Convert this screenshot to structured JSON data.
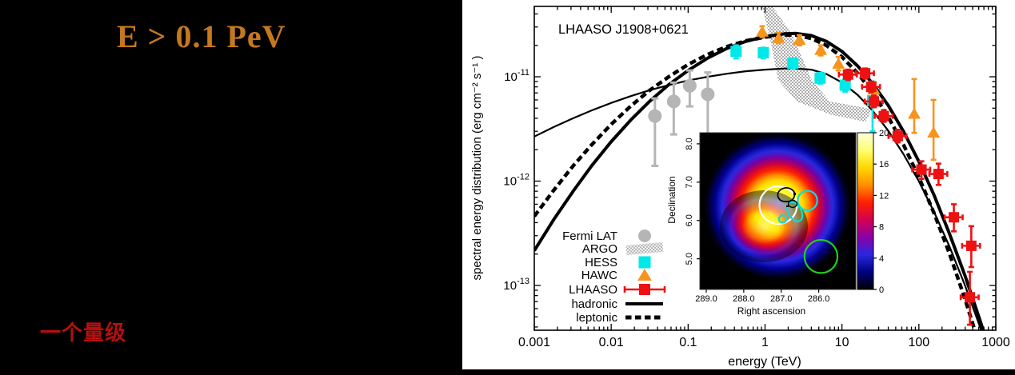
{
  "left_panel": {
    "title": "E > 0.1 PeV",
    "title_color": "#c5791f",
    "note": "一个量级",
    "note_color": "#b60f0f"
  },
  "chart_data": {
    "type": "line",
    "title": "LHAASO J1908+0621",
    "xlabel": "energy (TeV)",
    "ylabel": "spectral energy distribution (erg cm⁻² s⁻¹ )",
    "xscale": "log",
    "yscale": "log",
    "xlim": [
      0.001,
      1000
    ],
    "ylim": [
      3.7e-14,
      4.7e-11
    ],
    "x_tick_labels": [
      "0.001",
      "0.01",
      "0.1",
      "1",
      "10",
      "100",
      "1000"
    ],
    "x_tick_values": [
      0.001,
      0.01,
      0.1,
      1,
      10,
      100,
      1000
    ],
    "y_tick_labels": [
      {
        "base": "10",
        "exp": "-11",
        "value": 1e-11
      },
      {
        "base": "10",
        "exp": "-12",
        "value": 1e-12
      },
      {
        "base": "10",
        "exp": "-13",
        "value": 1e-13
      }
    ],
    "legend": [
      {
        "label": "Fermi LAT",
        "marker": "circle",
        "color": "#b5b5b5"
      },
      {
        "label": "ARGO",
        "marker": "hatch",
        "color": "#aaaaaa"
      },
      {
        "label": "HESS",
        "marker": "square",
        "color": "#00e8e8"
      },
      {
        "label": "HAWC",
        "marker": "triangle",
        "color": "#f7941e"
      },
      {
        "label": "LHAASO",
        "marker": "errsquare",
        "color": "#ee1111"
      },
      {
        "label": "hadronic",
        "marker": "line",
        "color": "#000000"
      },
      {
        "label": "leptonic",
        "marker": "dashes",
        "color": "#000000"
      }
    ],
    "series": [
      {
        "name": "Fermi LAT",
        "marker": "circle",
        "color": "#b5b5b5",
        "points": [
          [
            0.037,
            4.2e-12,
            1.4e-12,
            6.2e-12
          ],
          [
            0.065,
            5.8e-12,
            2.8e-12,
            8.8e-12
          ],
          [
            0.105,
            8.2e-12,
            5.2e-12,
            1.15e-11
          ],
          [
            0.18,
            6.8e-12,
            2e-12,
            1.1e-11
          ]
        ]
      },
      {
        "name": "HESS",
        "marker": "square",
        "color": "#00e8e8",
        "points": [
          [
            0.42,
            1.75e-11,
            1.5e-11,
            2e-11
          ],
          [
            0.95,
            1.7e-11,
            1.5e-11,
            1.9e-11
          ],
          [
            2.3,
            1.35e-11,
            1.2e-11,
            1.5e-11
          ],
          [
            5.2,
            9.7e-12,
            8.6e-12,
            1.09e-11
          ],
          [
            11,
            8.3e-12,
            7.2e-12,
            9.5e-12
          ],
          [
            25,
            5.9e-12,
            3e-12,
            9e-12
          ]
        ]
      },
      {
        "name": "HAWC",
        "marker": "triangle",
        "color": "#f7941e",
        "points": [
          [
            0.92,
            2.7e-11,
            2.4e-11,
            3.05e-11
          ],
          [
            1.5,
            2.35e-11,
            2.1e-11,
            2.65e-11
          ],
          [
            2.8,
            2.25e-11,
            2e-11,
            2.5e-11
          ],
          [
            5.3,
            1.8e-11,
            1.6e-11,
            2e-11
          ],
          [
            9.0,
            1.33e-11,
            1.15e-11,
            1.55e-11
          ],
          [
            26,
            7.5e-12,
            6.3e-12,
            8.9e-12
          ],
          [
            87,
            4.4e-12,
            2.9e-12,
            9.5e-12
          ],
          [
            155,
            2.9e-12,
            1.6e-12,
            6e-12
          ]
        ]
      },
      {
        "name": "LHAASO",
        "marker": "errsquare",
        "color": "#ee1111",
        "points": [
          [
            12,
            1.05e-11,
            9.3e-12,
            1.17e-11
          ],
          [
            20,
            1.08e-11,
            9.6e-12,
            1.2e-11
          ],
          [
            24,
            8e-12,
            7.1e-12,
            9e-12
          ],
          [
            26,
            5.8e-12,
            5.1e-12,
            6.6e-12
          ],
          [
            35,
            4.2e-12,
            3.7e-12,
            4.8e-12
          ],
          [
            53,
            2.7e-12,
            2.35e-12,
            3.1e-12
          ],
          [
            108,
            1.29e-12,
            1.05e-12,
            1.55e-12
          ],
          [
            180,
            1.17e-12,
            9.2e-13,
            1.47e-12
          ],
          [
            285,
            4.5e-13,
            3.3e-13,
            6e-13
          ],
          [
            480,
            2.4e-13,
            1.5e-13,
            3.7e-13
          ],
          [
            460,
            7.7e-14,
            4.2e-14,
            1.35e-13
          ]
        ]
      }
    ],
    "curves": [
      {
        "name": "hadronic",
        "style": "thick-solid",
        "x": [
          0.001,
          0.0018,
          0.0032,
          0.0056,
          0.01,
          0.018,
          0.032,
          0.056,
          0.1,
          0.18,
          0.32,
          0.56,
          1.0,
          1.8,
          2.5,
          4.0,
          6.3,
          10,
          16,
          25,
          40,
          63,
          100,
          158,
          251,
          398,
          631,
          800
        ],
        "y": [
          2.16e-13,
          4.3e-13,
          8e-13,
          1.41e-12,
          2.39e-12,
          3.86e-12,
          5.87e-12,
          8.39e-12,
          1.15e-11,
          1.51e-11,
          1.87e-11,
          2.18e-11,
          2.43e-11,
          2.58e-11,
          2.6e-11,
          2.48e-11,
          2.18e-11,
          1.75e-11,
          1.27e-11,
          8.6e-12,
          5.3e-12,
          3e-12,
          1.54e-12,
          7.3e-13,
          3.1e-13,
          1.24e-13,
          4.5e-14,
          2.6e-14
        ]
      },
      {
        "name": "leptonic",
        "style": "thick-dashed",
        "x": [
          0.001,
          0.0018,
          0.0032,
          0.0056,
          0.01,
          0.018,
          0.032,
          0.056,
          0.1,
          0.18,
          0.32,
          0.56,
          1.0,
          1.8,
          2.5,
          4.0,
          6.3,
          10,
          16,
          25,
          40,
          63,
          100,
          158,
          251,
          398,
          631,
          800
        ],
        "y": [
          4.6e-13,
          8.2e-13,
          1.4e-12,
          2.24e-12,
          3.5e-12,
          5.25e-12,
          7.45e-12,
          1e-11,
          1.31e-11,
          1.64e-11,
          1.95e-11,
          2.21e-11,
          2.4e-11,
          2.51e-11,
          2.51e-11,
          2.33e-11,
          1.99e-11,
          1.55e-11,
          1.08e-11,
          7.1e-12,
          4.1e-12,
          2.24e-12,
          1.09e-12,
          4.9e-13,
          2e-13,
          7.4e-14,
          2.5e-14,
          1.4e-14
        ]
      },
      {
        "name": "model-low",
        "style": "thin-solid",
        "x": [
          0.001,
          0.0018,
          0.0032,
          0.0056,
          0.01,
          0.018,
          0.032,
          0.056,
          0.1,
          0.18,
          0.32,
          0.56,
          1.0,
          1.8,
          2.5,
          4.0,
          6.3,
          10,
          16,
          25,
          40,
          63,
          100,
          158,
          251,
          398,
          631,
          800
        ],
        "y": [
          2.67e-12,
          3.3e-12,
          4e-12,
          4.77e-12,
          5.62e-12,
          6.53e-12,
          7.45e-12,
          8.33e-12,
          9.21e-12,
          1e-11,
          1.07e-11,
          1.13e-11,
          1.17e-11,
          1.2e-11,
          1.2e-11,
          1.17e-11,
          1.06e-11,
          8.8e-12,
          6.7e-12,
          4.74e-12,
          3.04e-12,
          1.82e-12,
          9.97e-13,
          5.05e-13,
          2.34e-13,
          1e-13,
          3.9e-14,
          2.4e-14
        ]
      }
    ],
    "argo_band": [
      [
        0.92,
        4.7e-11
      ],
      [
        1.25,
        4.7e-11
      ],
      [
        2.2,
        2.6e-11
      ],
      [
        4.05,
        9.3e-12
      ],
      [
        6.9,
        5.8e-12
      ],
      [
        24.7,
        4.9e-12
      ],
      [
        20.3,
        3.7e-12
      ],
      [
        7.4,
        4.3e-12
      ],
      [
        2.6,
        5.8e-12
      ],
      [
        1.48,
        9.3e-12
      ],
      [
        1.17,
        2.25e-11
      ]
    ],
    "inset": {
      "xlabel": "Right ascension",
      "ylabel": "Declination",
      "ra_ticks": [
        {
          "label": "289.0",
          "value": 289.0
        },
        {
          "label": "288.0",
          "value": 288.0
        },
        {
          "label": "287.0",
          "value": 287.0
        },
        {
          "label": "286.0",
          "value": 286.0
        }
      ],
      "dec_ticks": [
        {
          "label": "8.0",
          "value": 8.0
        },
        {
          "label": "7.0",
          "value": 7.0
        },
        {
          "label": "6.0",
          "value": 6.0
        },
        {
          "label": "5.0",
          "value": 5.0
        }
      ],
      "ra_range": [
        289.17,
        285.01
      ],
      "dec_range": [
        8.29,
        4.2
      ],
      "colorbar_ticks": [
        "0",
        "4",
        "8",
        "12",
        "16",
        "20"
      ],
      "colorbar_range": [
        0,
        20
      ],
      "palette": [
        "#000000",
        "#000080",
        "#2828e0",
        "#8a00a8",
        "#d40050",
        "#ff2000",
        "#ff9000",
        "#ffd800",
        "#ffff70",
        "#ffffe0"
      ],
      "hotspot": {
        "ra": 287.1,
        "dec": 6.37
      },
      "overlays": [
        {
          "name": "white-circle",
          "shape": "circle",
          "color": "#ffffff",
          "ra": 287.08,
          "dec": 6.4,
          "r": 0.5
        },
        {
          "name": "cyan-circle",
          "shape": "circle",
          "color": "#00e0e0",
          "ra": 286.3,
          "dec": 6.52,
          "r": 0.26
        },
        {
          "name": "cyan-ellipse",
          "shape": "ellipse",
          "color": "#00e0e0",
          "ra": 286.64,
          "dec": 6.23,
          "rx": 0.17,
          "ry": 0.28,
          "angle": -30
        },
        {
          "name": "cyan-small",
          "shape": "circle",
          "color": "#00e0e0",
          "ra": 286.96,
          "dec": 6.04,
          "r": 0.1
        },
        {
          "name": "green-circle",
          "shape": "circle",
          "color": "#1fcf1f",
          "ra": 285.94,
          "dec": 5.06,
          "r": 0.44
        }
      ]
    }
  }
}
